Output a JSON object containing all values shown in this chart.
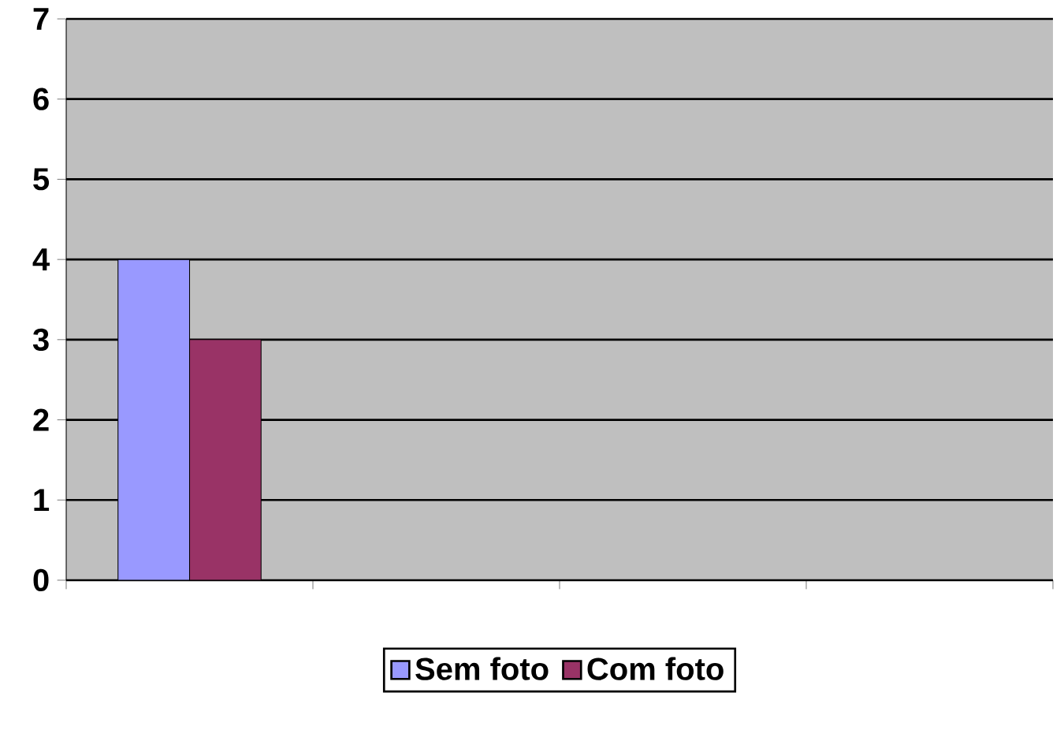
{
  "chart_data": {
    "type": "bar",
    "categories": [
      null,
      null,
      null,
      null
    ],
    "series": [
      {
        "name": "Sem foto",
        "color": "#9999ff",
        "values": [
          4,
          null,
          null,
          null
        ]
      },
      {
        "name": "Com foto",
        "color": "#993366",
        "values": [
          3,
          null,
          null,
          null
        ]
      }
    ],
    "ylim": [
      0,
      7
    ],
    "yticks": [
      0,
      1,
      2,
      3,
      4,
      5,
      6,
      7
    ],
    "grid": "y",
    "legend": "bottom"
  }
}
